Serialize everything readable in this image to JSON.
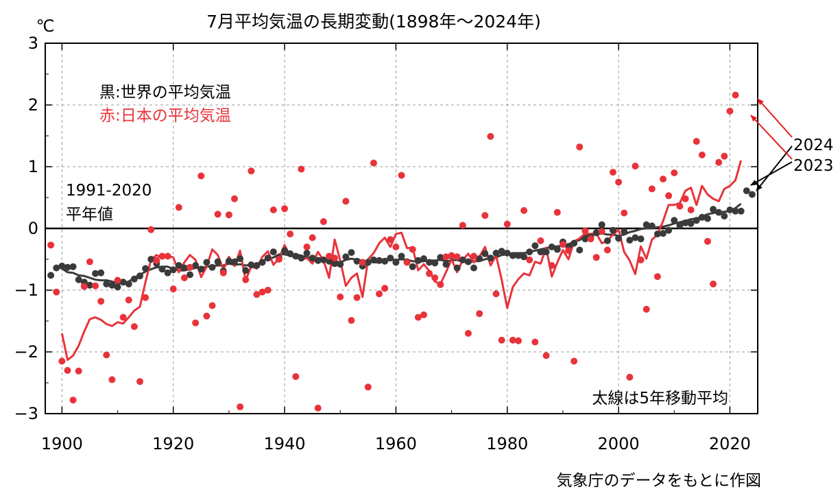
{
  "chart_data": {
    "type": "scatter",
    "title": "7月平均気温の長期変動(1898年〜2024年)",
    "y_unit": "℃",
    "xlim": [
      1897,
      2025
    ],
    "ylim": [
      -3,
      3
    ],
    "x_ticks": [
      1900,
      1920,
      1940,
      1960,
      1980,
      2000,
      2020
    ],
    "y_ticks": [
      3,
      2,
      1,
      0,
      -1,
      -2,
      -3
    ],
    "y_tick_labels": [
      "3",
      "2",
      "1",
      "0",
      "−1",
      "−2",
      "−3"
    ],
    "grid": true,
    "baseline": {
      "value": 0,
      "label_line1": "1991-2020",
      "label_line2": "平年値"
    },
    "legend_position": "top-left",
    "legend_world": "黒:世界の平均気温",
    "legend_japan": "赤:日本の平均気温",
    "note": "太線は5年移動平均",
    "source": "気象庁のデータをもとに作図",
    "highlight_labels": [
      "2024",
      "2023"
    ],
    "colors": {
      "world": "#3a3a3a",
      "japan": "#e8333b",
      "arrow_2024": "#e02020",
      "arrow_2023": "#000000"
    },
    "series": [
      {
        "name": "世界の平均気温",
        "color": "#3a3a3a",
        "start_year": 1898,
        "values": [
          -0.76,
          -0.64,
          -0.61,
          -0.63,
          -0.62,
          -0.83,
          -0.87,
          -0.92,
          -0.73,
          -0.72,
          -0.9,
          -0.92,
          -0.95,
          -0.87,
          -0.9,
          -0.82,
          -0.77,
          -0.65,
          -0.5,
          -0.57,
          -0.66,
          -0.72,
          -0.67,
          -0.6,
          -0.64,
          -0.75,
          -0.6,
          -0.66,
          -0.55,
          -0.63,
          -0.54,
          -0.69,
          -0.53,
          -0.54,
          -0.49,
          -0.68,
          -0.59,
          -0.6,
          -0.55,
          -0.48,
          -0.38,
          -0.48,
          -0.36,
          -0.41,
          -0.45,
          -0.48,
          -0.4,
          -0.48,
          -0.52,
          -0.51,
          -0.53,
          -0.57,
          -0.58,
          -0.46,
          -0.39,
          -0.53,
          -0.61,
          -0.55,
          -0.51,
          -0.52,
          -0.53,
          -0.48,
          -0.55,
          -0.45,
          -0.54,
          -0.62,
          -0.52,
          -0.49,
          -0.55,
          -0.56,
          -0.47,
          -0.58,
          -0.45,
          -0.64,
          -0.51,
          -0.54,
          -0.64,
          -0.49,
          -0.41,
          -0.48,
          -0.4,
          -0.37,
          -0.4,
          -0.44,
          -0.44,
          -0.46,
          -0.38,
          -0.28,
          -0.38,
          -0.38,
          -0.3,
          -0.34,
          -0.22,
          -0.29,
          -0.24,
          -0.35,
          -0.17,
          -0.14,
          -0.07,
          0.06,
          -0.2,
          -0.03,
          -0.16,
          -0.05,
          -0.19,
          -0.15,
          -0.17,
          0.06,
          0.04,
          -0.09,
          -0.08,
          -0.03,
          0.13,
          0.05,
          0.09,
          0.08,
          0.13,
          0.18,
          0.16,
          0.31,
          0.26,
          0.2,
          0.3,
          0.28,
          0.28,
          0.61,
          0.55
        ]
      },
      {
        "name": "日本の平均気温",
        "color": "#e8333b",
        "start_year": 1898,
        "values": [
          -0.27,
          -1.03,
          -2.15,
          -2.3,
          -2.78,
          -2.31,
          -0.94,
          -0.54,
          -0.93,
          -1.18,
          -2.05,
          -2.45,
          -0.84,
          -1.44,
          -1.16,
          -1.59,
          -2.48,
          -1.12,
          -0.02,
          -0.52,
          -0.45,
          -0.45,
          -0.98,
          0.34,
          -0.8,
          -0.63,
          -1.53,
          0.85,
          -1.42,
          -1.25,
          0.23,
          -0.72,
          0.22,
          0.48,
          -2.89,
          -0.83,
          0.93,
          -1.07,
          -1.03,
          -1.0,
          0.3,
          -0.5,
          0.32,
          -0.09,
          -2.4,
          0.96,
          -0.3,
          -0.15,
          -2.91,
          0.11,
          -0.45,
          -0.48,
          -1.11,
          0.44,
          -1.49,
          -1.12,
          -0.55,
          -2.57,
          1.06,
          -1.06,
          -0.97,
          -0.18,
          -0.3,
          0.86,
          -0.55,
          -0.34,
          -1.44,
          -1.4,
          -0.73,
          -0.8,
          -0.91,
          -0.46,
          -0.44,
          -0.46,
          0.05,
          -1.7,
          -0.45,
          -1.38,
          0.21,
          1.49,
          -1.06,
          -1.81,
          0.07,
          -1.81,
          -1.82,
          0.29,
          -0.51,
          -1.84,
          -0.2,
          -2.06,
          -0.6,
          0.26,
          -0.26,
          -0.36,
          -2.15,
          1.32,
          -0.04,
          -0.17,
          -0.47,
          -0.05,
          -0.35,
          0.91,
          0.75,
          0.25,
          -2.41,
          1.01,
          -0.51,
          -1.31,
          0.64,
          -0.78,
          0.8,
          0.53,
          0.9,
          0.36,
          0.48,
          0.3,
          1.41,
          1.19,
          -0.21,
          -0.9,
          1.07,
          1.17,
          1.9,
          2.16
        ]
      }
    ],
    "moving_average": [
      {
        "name": "世界の平均気温 5年移動平均",
        "color": "#3a3a3a",
        "start_year": 1900,
        "values": [
          -0.65,
          -0.71,
          -0.72,
          -0.76,
          -0.77,
          -0.8,
          -0.83,
          -0.84,
          -0.84,
          -0.86,
          -0.89,
          -0.89,
          -0.86,
          -0.8,
          -0.75,
          -0.7,
          -0.66,
          -0.63,
          -0.62,
          -0.62,
          -0.66,
          -0.68,
          -0.68,
          -0.66,
          -0.64,
          -0.64,
          -0.62,
          -0.61,
          -0.6,
          -0.6,
          -0.57,
          -0.59,
          -0.58,
          -0.6,
          -0.59,
          -0.58,
          -0.52,
          -0.5,
          -0.47,
          -0.42,
          -0.42,
          -0.44,
          -0.42,
          -0.44,
          -0.47,
          -0.47,
          -0.48,
          -0.49,
          -0.52,
          -0.53,
          -0.55,
          -0.51,
          -0.49,
          -0.51,
          -0.52,
          -0.53,
          -0.55,
          -0.55,
          -0.53,
          -0.5,
          -0.51,
          -0.5,
          -0.51,
          -0.53,
          -0.54,
          -0.53,
          -0.52,
          -0.52,
          -0.51,
          -0.53,
          -0.52,
          -0.51,
          -0.54,
          -0.55,
          -0.53,
          -0.53,
          -0.5,
          -0.48,
          -0.47,
          -0.43,
          -0.42,
          -0.4,
          -0.4,
          -0.4,
          -0.38,
          -0.36,
          -0.34,
          -0.32,
          -0.3,
          -0.29,
          -0.28,
          -0.26,
          -0.21,
          -0.19,
          -0.12,
          -0.1,
          -0.1,
          -0.08,
          -0.1,
          -0.1,
          -0.12,
          -0.1,
          -0.06,
          -0.04,
          -0.01,
          0.0,
          0.0,
          0.02,
          0.03,
          0.05,
          0.08,
          0.1,
          0.12,
          0.15,
          0.16,
          0.19,
          0.23,
          0.25,
          0.26,
          0.27,
          0.28,
          0.33,
          0.4
        ]
      },
      {
        "name": "日本の平均気温 5年移動平均",
        "color": "#e8333b",
        "start_year": 1900,
        "values": [
          -1.7,
          -2.13,
          -2.06,
          -1.9,
          -1.67,
          -1.47,
          -1.44,
          -1.48,
          -1.55,
          -1.58,
          -1.52,
          -1.54,
          -1.44,
          -1.33,
          -1.27,
          -0.87,
          -0.51,
          -0.43,
          -0.49,
          -0.44,
          -0.47,
          -0.71,
          -0.55,
          -0.43,
          -0.51,
          -0.79,
          -0.62,
          -0.34,
          -0.43,
          -0.67,
          -0.46,
          -0.61,
          -0.36,
          -0.84,
          -0.62,
          -0.65,
          -0.46,
          -0.37,
          -0.59,
          -0.48,
          -0.27,
          -0.45,
          -0.45,
          -0.5,
          -0.48,
          -0.57,
          -0.38,
          -0.52,
          -0.8,
          -0.18,
          -0.52,
          -0.93,
          -0.8,
          -0.73,
          -1.11,
          -0.5,
          -0.4,
          -0.24,
          -0.15,
          -0.3,
          -0.09,
          -0.07,
          -0.32,
          -0.31,
          -0.68,
          -0.58,
          -0.69,
          -0.86,
          -0.9,
          -0.71,
          -0.5,
          -0.71,
          -0.51,
          -0.41,
          -0.55,
          -0.46,
          -0.3,
          -0.6,
          -0.44,
          -0.83,
          -1.29,
          -0.95,
          -0.82,
          -0.73,
          -0.76,
          -0.54,
          -0.57,
          -0.31,
          -0.78,
          -0.55,
          -0.35,
          -0.5,
          -0.21,
          -0.16,
          -0.08,
          -0.09,
          -0.08,
          -0.24,
          -0.2,
          -0.1,
          -0.02,
          -0.38,
          -0.52,
          -0.74,
          -0.29,
          -0.49,
          -0.18,
          -0.1,
          0.12,
          0.38,
          0.38,
          0.41,
          0.61,
          0.66,
          0.38,
          0.69,
          0.55,
          0.48,
          0.44,
          0.64,
          0.69,
          0.78,
          1.1
        ]
      }
    ]
  }
}
